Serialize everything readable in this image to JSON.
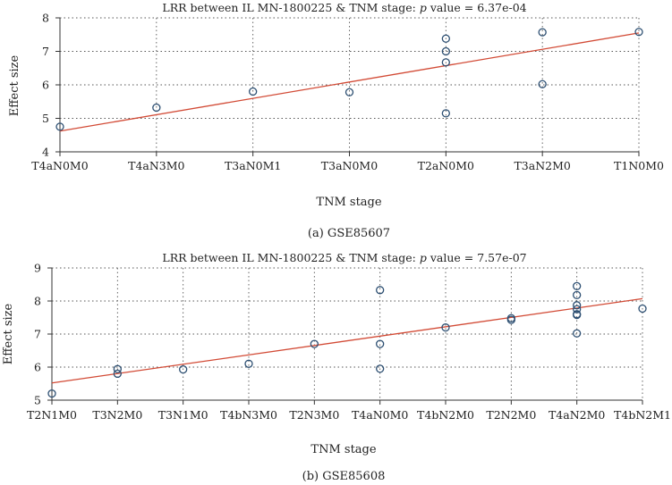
{
  "chart_data": [
    {
      "type": "scatter",
      "title_prefix": "LRR between IL MN-1800225 & TNM stage: ",
      "title_p": "p",
      "title_suffix": " value = 6.37e-04",
      "xlabel": "TNM stage",
      "ylabel": "Effect size",
      "caption": "(a)  GSE85607",
      "categories": [
        "T4aN0M0",
        "T4aN3M0",
        "T3aN0M1",
        "T3aN0M0",
        "T2aN0M0",
        "T3aN2M0",
        "T1N0M0"
      ],
      "ylim": [
        4,
        8
      ],
      "yticks": [
        4,
        5,
        6,
        7,
        8
      ],
      "grid": true,
      "points": [
        {
          "x": "T4aN0M0",
          "y": 4.75
        },
        {
          "x": "T4aN3M0",
          "y": 5.32
        },
        {
          "x": "T3aN0M1",
          "y": 5.8
        },
        {
          "x": "T3aN0M0",
          "y": 5.78
        },
        {
          "x": "T2aN0M0",
          "y": 7.38
        },
        {
          "x": "T2aN0M0",
          "y": 7.0
        },
        {
          "x": "T2aN0M0",
          "y": 6.67
        },
        {
          "x": "T2aN0M0",
          "y": 5.15
        },
        {
          "x": "T3aN2M0",
          "y": 7.57
        },
        {
          "x": "T3aN2M0",
          "y": 6.02
        },
        {
          "x": "T1N0M0",
          "y": 7.58
        }
      ],
      "trendline": {
        "x_start": "T4aN0M0",
        "y_start": 4.62,
        "x_end": "T1N0M0",
        "y_end": 7.55
      },
      "colors": {
        "points": "#2d4f72",
        "trendline": "#d24a35"
      }
    },
    {
      "type": "scatter",
      "title_prefix": "LRR between IL MN-1800225 & TNM stage: ",
      "title_p": "p",
      "title_suffix": " value = 7.57e-07",
      "xlabel": "TNM stage",
      "ylabel": "Effect size",
      "caption": "(b)  GSE85608",
      "categories": [
        "T2N1M0",
        "T3N2M0",
        "T3N1M0",
        "T4bN3M0",
        "T2N3M0",
        "T4aN0M0",
        "T4bN2M0",
        "T2N2M0",
        "T4aN2M0",
        "T4bN2M1"
      ],
      "ylim": [
        5,
        9
      ],
      "yticks": [
        5,
        6,
        7,
        8,
        9
      ],
      "grid": true,
      "points": [
        {
          "x": "T2N1M0",
          "y": 5.2
        },
        {
          "x": "T3N2M0",
          "y": 5.94
        },
        {
          "x": "T3N2M0",
          "y": 5.8
        },
        {
          "x": "T3N1M0",
          "y": 5.93
        },
        {
          "x": "T4bN3M0",
          "y": 6.1
        },
        {
          "x": "T2N3M0",
          "y": 6.7
        },
        {
          "x": "T4aN0M0",
          "y": 8.33
        },
        {
          "x": "T4aN0M0",
          "y": 6.7
        },
        {
          "x": "T4aN0M0",
          "y": 5.95
        },
        {
          "x": "T4bN2M0",
          "y": 7.2
        },
        {
          "x": "T2N2M0",
          "y": 7.48
        },
        {
          "x": "T2N2M0",
          "y": 7.43
        },
        {
          "x": "T4aN2M0",
          "y": 7.58
        },
        {
          "x": "T4aN2M0",
          "y": 8.45
        },
        {
          "x": "T4aN2M0",
          "y": 8.18
        },
        {
          "x": "T4aN2M0",
          "y": 7.87
        },
        {
          "x": "T4aN2M0",
          "y": 7.75
        },
        {
          "x": "T4aN2M0",
          "y": 7.6
        },
        {
          "x": "T4aN2M0",
          "y": 7.02
        },
        {
          "x": "T4bN2M1",
          "y": 7.77
        }
      ],
      "trendline": {
        "x_start": "T2N1M0",
        "y_start": 5.52,
        "x_end": "T4bN2M1",
        "y_end": 8.07
      },
      "colors": {
        "points": "#2d4f72",
        "trendline": "#d24a35"
      }
    }
  ]
}
